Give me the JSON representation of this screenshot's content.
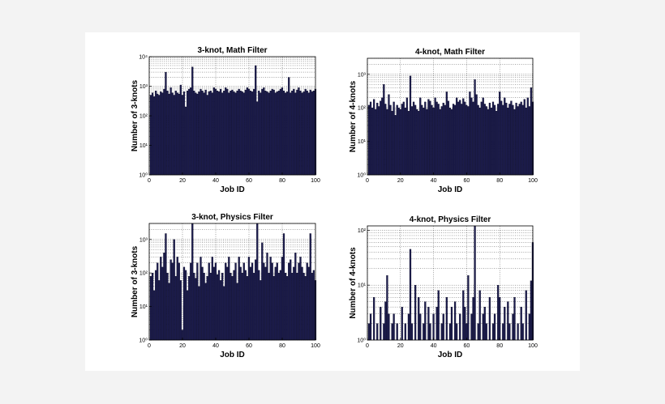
{
  "chart_data": [
    {
      "type": "bar",
      "title": "3-knot, Math Filter",
      "xlabel": "Job ID",
      "ylabel": "Number of 3-knots",
      "xlim": [
        0,
        100
      ],
      "xticks": [
        0,
        20,
        40,
        60,
        80,
        100
      ],
      "ylim": [
        1,
        10000
      ],
      "yscale": "log",
      "yticks": [
        1,
        10,
        100,
        1000,
        10000
      ],
      "yticklabels": [
        "10⁰",
        "10¹",
        "10²",
        "10³",
        "10⁴"
      ],
      "grid": true,
      "bar_color": "#1c1c4e",
      "x": [
        1,
        2,
        3,
        4,
        5,
        6,
        7,
        8,
        9,
        10,
        11,
        12,
        13,
        14,
        15,
        16,
        17,
        18,
        19,
        20,
        21,
        22,
        23,
        24,
        25,
        26,
        27,
        28,
        29,
        30,
        31,
        32,
        33,
        34,
        35,
        36,
        37,
        38,
        39,
        40,
        41,
        42,
        43,
        44,
        45,
        46,
        47,
        48,
        49,
        50,
        51,
        52,
        53,
        54,
        55,
        56,
        57,
        58,
        59,
        60,
        61,
        62,
        63,
        64,
        65,
        66,
        67,
        68,
        69,
        70,
        71,
        72,
        73,
        74,
        75,
        76,
        77,
        78,
        79,
        80,
        81,
        82,
        83,
        84,
        85,
        86,
        87,
        88,
        89,
        90,
        91,
        92,
        93,
        94,
        95,
        96,
        97,
        98,
        99,
        100
      ],
      "values": [
        500,
        600,
        450,
        700,
        550,
        500,
        650,
        600,
        800,
        3000,
        700,
        550,
        900,
        600,
        500,
        700,
        600,
        550,
        1100,
        500,
        650,
        200,
        700,
        800,
        900,
        4500,
        700,
        600,
        550,
        650,
        800,
        700,
        600,
        750,
        500,
        650,
        700,
        600,
        900,
        800,
        700,
        650,
        800,
        600,
        700,
        900,
        800,
        600,
        700,
        750,
        650,
        600,
        700,
        800,
        700,
        650,
        600,
        750,
        900,
        800,
        700,
        650,
        800,
        5000,
        300,
        700,
        600,
        800,
        900,
        700,
        650,
        600,
        700,
        800,
        750,
        600,
        650,
        700,
        800,
        900,
        700,
        600,
        650,
        2000,
        600,
        700,
        800,
        600,
        750,
        900,
        700,
        600,
        650,
        800,
        700,
        600,
        750,
        650,
        700,
        800
      ]
    },
    {
      "type": "bar",
      "title": "4-knot, Math Filter",
      "xlabel": "Job ID",
      "ylabel": "Number of 4-knots",
      "xlim": [
        0,
        100
      ],
      "xticks": [
        0,
        20,
        40,
        60,
        80,
        100
      ],
      "ylim": [
        1,
        3000
      ],
      "yscale": "log",
      "yticks": [
        1,
        10,
        100,
        1000
      ],
      "yticklabels": [
        "10⁰",
        "10¹",
        "10²",
        "10³"
      ],
      "grid": true,
      "bar_color": "#1c1c4e",
      "x": [
        1,
        2,
        3,
        4,
        5,
        6,
        7,
        8,
        9,
        10,
        11,
        12,
        13,
        14,
        15,
        16,
        17,
        18,
        19,
        20,
        21,
        22,
        23,
        24,
        25,
        26,
        27,
        28,
        29,
        30,
        31,
        32,
        33,
        34,
        35,
        36,
        37,
        38,
        39,
        40,
        41,
        42,
        43,
        44,
        45,
        46,
        47,
        48,
        49,
        50,
        51,
        52,
        53,
        54,
        55,
        56,
        57,
        58,
        59,
        60,
        61,
        62,
        63,
        64,
        65,
        66,
        67,
        68,
        69,
        70,
        71,
        72,
        73,
        74,
        75,
        76,
        77,
        78,
        79,
        80,
        81,
        82,
        83,
        84,
        85,
        86,
        87,
        88,
        89,
        90,
        91,
        92,
        93,
        94,
        95,
        96,
        97,
        98,
        99,
        100
      ],
      "values": [
        120,
        150,
        100,
        180,
        90,
        140,
        110,
        160,
        200,
        500,
        130,
        90,
        250,
        120,
        80,
        150,
        60,
        120,
        100,
        90,
        130,
        150,
        100,
        200,
        80,
        900,
        110,
        150,
        120,
        90,
        80,
        200,
        120,
        100,
        150,
        90,
        180,
        160,
        120,
        100,
        200,
        150,
        130,
        90,
        110,
        140,
        120,
        300,
        160,
        100,
        90,
        130,
        120,
        200,
        150,
        170,
        130,
        190,
        150,
        120,
        110,
        300,
        200,
        150,
        700,
        250,
        120,
        100,
        150,
        200,
        130,
        110,
        90,
        140,
        100,
        150,
        120,
        80,
        130,
        300,
        160,
        120,
        200,
        140,
        100,
        130,
        160,
        120,
        90,
        140,
        110,
        130,
        150,
        120,
        180,
        100,
        200,
        110,
        400,
        150
      ]
    },
    {
      "type": "bar",
      "title": "3-knot, Physics Filter",
      "xlabel": "Job ID",
      "ylabel": "Number of 3-knots",
      "xlim": [
        0,
        100
      ],
      "xticks": [
        0,
        20,
        40,
        60,
        80,
        100
      ],
      "ylim": [
        1,
        3000
      ],
      "yscale": "log",
      "yticks": [
        1,
        10,
        100,
        1000
      ],
      "yticklabels": [
        "10⁰",
        "10¹",
        "10²",
        "10³"
      ],
      "grid": true,
      "bar_color": "#1c1c4e",
      "x": [
        1,
        2,
        3,
        4,
        5,
        6,
        7,
        8,
        9,
        10,
        11,
        12,
        13,
        14,
        15,
        16,
        17,
        18,
        19,
        20,
        21,
        22,
        23,
        24,
        25,
        26,
        27,
        28,
        29,
        30,
        31,
        32,
        33,
        34,
        35,
        36,
        37,
        38,
        39,
        40,
        41,
        42,
        43,
        44,
        45,
        46,
        47,
        48,
        49,
        50,
        51,
        52,
        53,
        54,
        55,
        56,
        57,
        58,
        59,
        60,
        61,
        62,
        63,
        64,
        65,
        66,
        67,
        68,
        69,
        70,
        71,
        72,
        73,
        74,
        75,
        76,
        77,
        78,
        79,
        80,
        81,
        82,
        83,
        84,
        85,
        86,
        87,
        88,
        89,
        90,
        91,
        92,
        93,
        94,
        95,
        96,
        97,
        98,
        99,
        100
      ],
      "values": [
        80,
        100,
        30,
        120,
        200,
        60,
        300,
        150,
        400,
        1500,
        100,
        50,
        250,
        200,
        1000,
        80,
        300,
        200,
        60,
        2,
        150,
        120,
        30,
        80,
        200,
        3000,
        100,
        70,
        200,
        40,
        300,
        150,
        100,
        50,
        80,
        200,
        100,
        300,
        150,
        200,
        90,
        120,
        60,
        100,
        40,
        200,
        150,
        300,
        100,
        80,
        120,
        200,
        50,
        300,
        150,
        100,
        200,
        120,
        80,
        300,
        150,
        200,
        100,
        250,
        3000,
        120,
        60,
        800,
        200,
        150,
        400,
        100,
        300,
        200,
        80,
        150,
        200,
        100,
        120,
        300,
        1500,
        100,
        80,
        200,
        250,
        100,
        150,
        400,
        100,
        200,
        300,
        150,
        100,
        80,
        200,
        150,
        1500,
        100,
        120,
        60
      ]
    },
    {
      "type": "bar",
      "title": "4-knot, Physics Filter",
      "xlabel": "Job ID",
      "ylabel": "Number of 4-knots",
      "xlim": [
        0,
        100
      ],
      "xticks": [
        0,
        20,
        40,
        60,
        80,
        100
      ],
      "ylim": [
        1,
        120
      ],
      "yscale": "log",
      "yticks": [
        1,
        10,
        100
      ],
      "yticklabels": [
        "10⁰",
        "10¹",
        "10²"
      ],
      "grid": true,
      "bar_color": "#1c1c4e",
      "x": [
        1,
        2,
        3,
        4,
        5,
        6,
        7,
        8,
        9,
        10,
        11,
        12,
        13,
        14,
        15,
        16,
        17,
        18,
        19,
        20,
        21,
        22,
        23,
        24,
        25,
        26,
        27,
        28,
        29,
        30,
        31,
        32,
        33,
        34,
        35,
        36,
        37,
        38,
        39,
        40,
        41,
        42,
        43,
        44,
        45,
        46,
        47,
        48,
        49,
        50,
        51,
        52,
        53,
        54,
        55,
        56,
        57,
        58,
        59,
        60,
        61,
        62,
        63,
        64,
        65,
        66,
        67,
        68,
        69,
        70,
        71,
        72,
        73,
        74,
        75,
        76,
        77,
        78,
        79,
        80,
        81,
        82,
        83,
        84,
        85,
        86,
        87,
        88,
        89,
        90,
        91,
        92,
        93,
        94,
        95,
        96,
        97,
        98,
        99,
        100
      ],
      "values": [
        2,
        3,
        1,
        6,
        1,
        2,
        1,
        4,
        1,
        2,
        5,
        15,
        3,
        1,
        2,
        3,
        1,
        2,
        1,
        1,
        4,
        1,
        2,
        1,
        3,
        45,
        2,
        1,
        10,
        1,
        6,
        3,
        1,
        2,
        5,
        1,
        4,
        2,
        1,
        3,
        1,
        4,
        8,
        1,
        2,
        3,
        1,
        6,
        1,
        2,
        4,
        1,
        5,
        2,
        1,
        3,
        1,
        8,
        4,
        2,
        15,
        1,
        3,
        6,
        120,
        1,
        2,
        8,
        1,
        3,
        4,
        2,
        1,
        6,
        1,
        2,
        3,
        1,
        10,
        6,
        1,
        2,
        4,
        1,
        5,
        2,
        1,
        3,
        6,
        1,
        2,
        1,
        4,
        2,
        1,
        8,
        1,
        3,
        12,
        60
      ]
    }
  ]
}
